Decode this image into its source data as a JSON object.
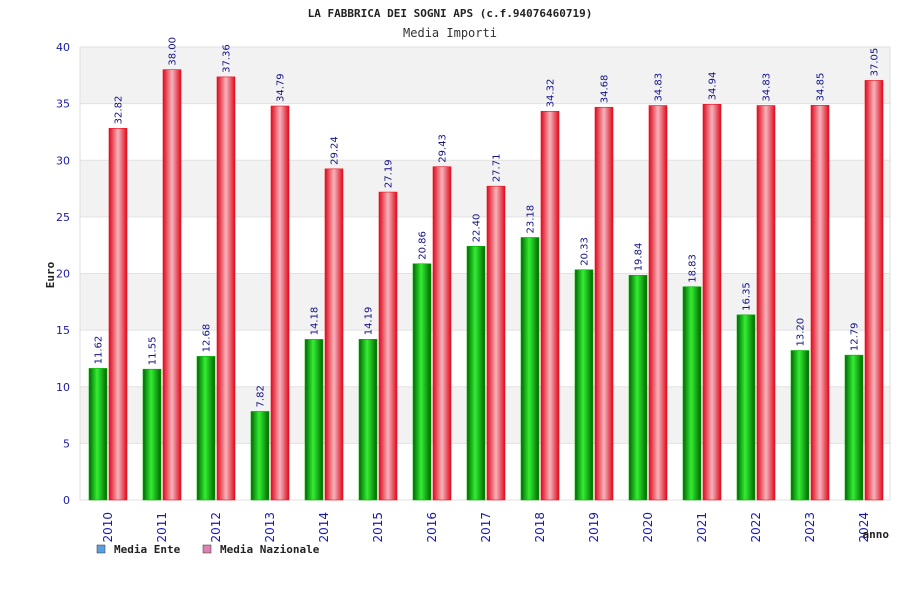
{
  "chart_data": {
    "type": "bar",
    "title": "LA FABBRICA DEI SOGNI APS (c.f.94076460719)",
    "subtitle": "Media Importi",
    "xlabel": "anno",
    "ylabel": "Euro",
    "ylim": [
      0,
      40
    ],
    "yticks": [
      0,
      5,
      10,
      15,
      20,
      25,
      30,
      35,
      40
    ],
    "grid": true,
    "legend_position": "bottom-left",
    "categories": [
      "2010",
      "2011",
      "2012",
      "2013",
      "2014",
      "2015",
      "2016",
      "2017",
      "2018",
      "2019",
      "2020",
      "2021",
      "2022",
      "2023",
      "2024"
    ],
    "series": [
      {
        "name": "Media Ente",
        "color": "#00b000",
        "legend_color": "#5aa0e0",
        "values": [
          11.62,
          11.55,
          12.68,
          7.82,
          14.18,
          14.19,
          20.86,
          22.4,
          23.18,
          20.33,
          19.84,
          18.83,
          16.35,
          13.2,
          12.79
        ],
        "labels": [
          "11.62",
          "11.55",
          "12.68",
          "7.82",
          "14.18",
          "14.19",
          "20.86",
          "22.40",
          "23.18",
          "20.33",
          "19.84",
          "18.83",
          "16.35",
          "13.20",
          "12.79"
        ]
      },
      {
        "name": "Media Nazionale",
        "color": "#e81020",
        "legend_color": "#e080b0",
        "values": [
          32.82,
          38.0,
          37.36,
          34.79,
          29.24,
          27.19,
          29.43,
          27.71,
          34.32,
          34.68,
          34.83,
          34.94,
          34.83,
          34.85,
          37.05
        ],
        "labels": [
          "32.82",
          "38.00",
          "37.36",
          "34.79",
          "29.24",
          "27.19",
          "29.43",
          "27.71",
          "34.32",
          "34.68",
          "34.83",
          "34.94",
          "34.83",
          "34.85",
          "37.05"
        ]
      }
    ]
  }
}
